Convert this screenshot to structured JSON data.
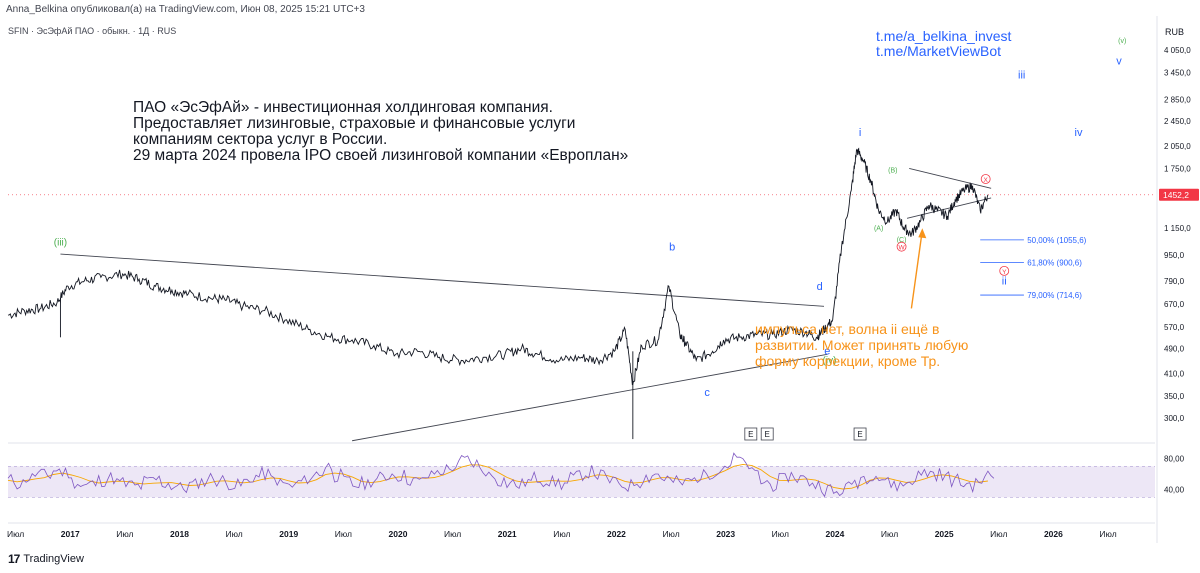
{
  "header": {
    "published": "Anna_Belkina опубликовал(а) на TradingView.com, Июн 08, 2025 15:21 UTC+3",
    "symbol": "SFIN · ЭсЭфАй ПАО · обыкн. · 1Д · RUS"
  },
  "telegram": [
    "t.me/a_belkina_invest",
    "t.me/MarketViewBot"
  ],
  "description": [
    "ПАО «ЭсЭфАй» - инвестиционная холдинговая  компания.",
    "Предоставляет лизинговые, страховые и финансовые услуги",
    "компаниям сектора услуг в России.",
    "29 марта 2024 провела IPO своей лизинговой компании «Европлан»"
  ],
  "note": [
    "импульса нет, волна ii ещё в",
    "развитии. Может принять любую",
    "форму коррекции, кроме Тр."
  ],
  "footer": {
    "logo": "17",
    "brand": "TradingView"
  },
  "colors": {
    "price_line": "#131722",
    "wave_green": "#4caf50",
    "wave_blue": "#2962ff",
    "wave_red": "#f23645",
    "note_orange": "#f7931a",
    "rsi_line": "#7e57c2",
    "rsi_ma": "#f7a600",
    "rsi_band": "#ede7f6",
    "fib_line": "#2962ff",
    "last_price_badge": "#f23645"
  },
  "chart_data": {
    "type": "line",
    "title": "SFIN · ЭсЭфАй ПАО · обыкн. · 1Д · RUS",
    "currency": "RUB",
    "y_scale": "log",
    "ylim": [
      260,
      5000
    ],
    "y_ticks": [
      4050,
      3450,
      2850,
      2450,
      2050,
      1750,
      1450,
      1150,
      950,
      790,
      670,
      570,
      490,
      410,
      350,
      300
    ],
    "last_price": {
      "value": 1452.2,
      "label": "1452,2"
    },
    "x_labels": [
      "Июл",
      "2017",
      "Июл",
      "2018",
      "Июл",
      "2019",
      "Июл",
      "2020",
      "Июл",
      "2021",
      "Июл",
      "2022",
      "Июл",
      "2023",
      "Июл",
      "2024",
      "Июл",
      "2025",
      "Июл",
      "2026",
      "Июл"
    ],
    "series": [
      {
        "x": [
          2016.45,
          2016.6,
          2016.75,
          2016.9,
          2017.0,
          2017.15,
          2017.3,
          2017.5,
          2017.65,
          2017.8,
          2017.95,
          2018.1,
          2018.3,
          2018.45,
          2018.6,
          2018.8,
          2019.0,
          2019.2,
          2019.4,
          2019.6,
          2019.8,
          2020.0,
          2020.2,
          2020.4,
          2020.6,
          2020.8,
          2021.0,
          2021.15,
          2021.3,
          2021.5,
          2021.7,
          2021.85,
          2022.0,
          2022.1,
          2022.17,
          2022.25,
          2022.4,
          2022.5,
          2022.6,
          2022.65,
          2022.75,
          2022.9,
          2023.0,
          2023.15,
          2023.3,
          2023.45,
          2023.6,
          2023.75,
          2023.85,
          2023.92,
          2024.0,
          2024.08,
          2024.17,
          2024.22,
          2024.28,
          2024.35,
          2024.42,
          2024.5,
          2024.58,
          2024.65,
          2024.72,
          2024.8,
          2024.88,
          2024.96,
          2025.05,
          2025.12,
          2025.2,
          2025.28,
          2025.35,
          2025.42
        ],
        "values": [
          620,
          640,
          650,
          680,
          760,
          790,
          810,
          830,
          800,
          760,
          740,
          720,
          700,
          690,
          660,
          640,
          600,
          560,
          530,
          520,
          500,
          470,
          480,
          460,
          450,
          460,
          470,
          490,
          470,
          450,
          460,
          450,
          480,
          560,
          380,
          500,
          520,
          760,
          540,
          510,
          450,
          480,
          520,
          530,
          540,
          540,
          560,
          550,
          530,
          560,
          600,
          1000,
          1500,
          2000,
          1850,
          1600,
          1300,
          1200,
          1300,
          1150,
          1100,
          1200,
          1350,
          1300,
          1250,
          1400,
          1500,
          1550,
          1300,
          1452
        ]
      }
    ],
    "annotations": [
      {
        "text": "(iii)",
        "x": 2016.93,
        "value": 1015,
        "color": "green"
      },
      {
        "text": "b",
        "x": 2022.53,
        "value": 980,
        "color": "blue"
      },
      {
        "text": "c",
        "x": 2022.85,
        "value": 350,
        "color": "blue"
      },
      {
        "text": "d",
        "x": 2023.88,
        "value": 740,
        "color": "blue"
      },
      {
        "text": "e",
        "x": 2023.95,
        "value": 470,
        "color": "blue"
      },
      {
        "text": "(iv)",
        "x": 2023.97,
        "value": 440,
        "color": "green"
      },
      {
        "text": "i",
        "x": 2024.25,
        "value": 2200,
        "color": "blue"
      },
      {
        "text": "(B)",
        "x": 2024.55,
        "value": 1700,
        "color": "green"
      },
      {
        "text": "(A)",
        "x": 2024.42,
        "value": 1130,
        "color": "green"
      },
      {
        "text": "(C)",
        "x": 2024.63,
        "value": 1040,
        "color": "green"
      },
      {
        "text": "W",
        "x": 2024.63,
        "value": 985,
        "color": "red"
      },
      {
        "text": "X",
        "x": 2025.4,
        "value": 1590,
        "color": "red"
      },
      {
        "text": "Y",
        "x": 2025.57,
        "value": 830,
        "color": "red"
      },
      {
        "text": "ii",
        "x": 2025.57,
        "value": 770,
        "color": "blue"
      },
      {
        "text": "iii",
        "x": 2025.73,
        "value": 3300,
        "color": "blue"
      },
      {
        "text": "iv",
        "x": 2026.25,
        "value": 2200,
        "color": "blue"
      },
      {
        "text": "v",
        "x": 2026.62,
        "value": 3650,
        "color": "blue"
      },
      {
        "text": "(v)",
        "x": 2026.65,
        "value": 4250,
        "color": "green"
      }
    ],
    "fib_levels": [
      {
        "label": "50,00% (1055,6)",
        "value": 1055.6
      },
      {
        "label": "61,80% (900,6)",
        "value": 900.6
      },
      {
        "label": "79,00% (714,6)",
        "value": 714.6
      }
    ],
    "trendlines": [
      {
        "from": [
          2016.93,
          955
        ],
        "to": [
          2023.92,
          660
        ]
      },
      {
        "from": [
          2019.6,
          255
        ],
        "to": [
          2023.95,
          470
        ]
      },
      {
        "from": [
          2024.7,
          1750
        ],
        "to": [
          2025.45,
          1520
        ]
      },
      {
        "from": [
          2024.68,
          1230
        ],
        "to": [
          2025.45,
          1420
        ]
      }
    ],
    "event_markers": [
      {
        "text": "E",
        "x": 2023.25
      },
      {
        "text": "E",
        "x": 2023.4
      },
      {
        "text": "E",
        "x": 2024.25
      }
    ],
    "rsi": {
      "ylim": [
        20,
        95
      ],
      "y_ticks": [
        80,
        40
      ],
      "band": [
        30,
        70
      ],
      "values": [
        52,
        48,
        55,
        60,
        58,
        65,
        62,
        50,
        45,
        47,
        52,
        55,
        49,
        46,
        44,
        50,
        53,
        48,
        45,
        42,
        46,
        50,
        55,
        52,
        48,
        45,
        50,
        57,
        60,
        53,
        47,
        44,
        50,
        55,
        62,
        70,
        58,
        50,
        46,
        48,
        52,
        55,
        60,
        58,
        53,
        50,
        57,
        62,
        66,
        70,
        78,
        74,
        65,
        58,
        52,
        48,
        46,
        50,
        55,
        52,
        49,
        47,
        55,
        60,
        63,
        58,
        52,
        47,
        45,
        50,
        56,
        60,
        55,
        50,
        48,
        52,
        57,
        62,
        66,
        72,
        80,
        72,
        60,
        50,
        46,
        52,
        58,
        55,
        50,
        46,
        40,
        35,
        42,
        50,
        56,
        60,
        54,
        48,
        45,
        50,
        58,
        62,
        60,
        56,
        52,
        48,
        46,
        52,
        58
      ]
    }
  }
}
